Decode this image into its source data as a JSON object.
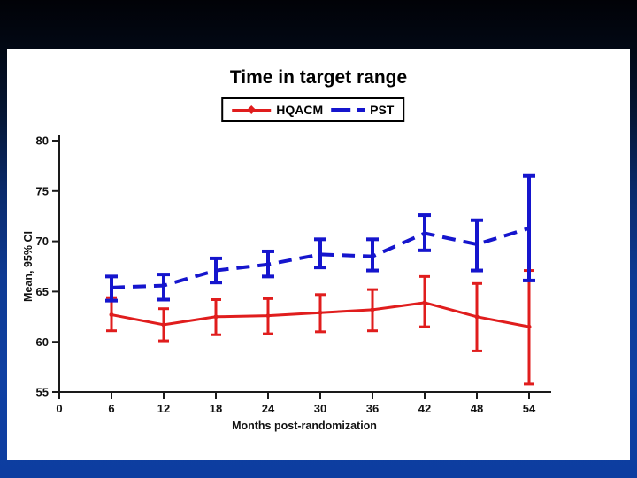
{
  "slide": {
    "background_top": "#010207",
    "background_bottom": "#0d3da0",
    "panel_color": "#ffffff"
  },
  "chart_data": {
    "type": "line",
    "title": "Time in target range",
    "xlabel": "Months post-randomization",
    "ylabel": "Mean, 95% CI",
    "x": [
      6,
      12,
      18,
      24,
      30,
      36,
      42,
      48,
      54
    ],
    "x_ticks": [
      0,
      6,
      12,
      18,
      24,
      30,
      36,
      42,
      48,
      54
    ],
    "y_ticks": [
      55,
      60,
      65,
      70,
      75,
      80
    ],
    "xlim": [
      0,
      57
    ],
    "ylim": [
      55,
      80
    ],
    "grid": false,
    "legend_position": "top-center",
    "error_bars": "95% CI",
    "series": [
      {
        "name": "HQACM",
        "color": "#e01d1d",
        "line": "solid",
        "marker": "dot",
        "mean": [
          62.7,
          61.7,
          62.5,
          62.6,
          62.9,
          63.2,
          63.9,
          62.5,
          61.5
        ],
        "ci_low": [
          61.1,
          60.1,
          60.7,
          60.8,
          61.0,
          61.1,
          61.5,
          59.1,
          55.8
        ],
        "ci_high": [
          64.4,
          63.3,
          64.2,
          64.3,
          64.7,
          65.2,
          66.5,
          65.8,
          67.1
        ]
      },
      {
        "name": "PST",
        "color": "#1515cd",
        "line": "dashed",
        "marker": "none",
        "mean": [
          65.4,
          65.6,
          67.1,
          67.7,
          68.7,
          68.5,
          70.8,
          69.7,
          71.3
        ],
        "ci_low": [
          64.1,
          64.2,
          65.9,
          66.5,
          67.4,
          67.1,
          69.1,
          67.1,
          66.1
        ],
        "ci_high": [
          66.5,
          66.7,
          68.3,
          69.0,
          70.2,
          70.2,
          72.6,
          72.1,
          76.5
        ]
      }
    ]
  }
}
